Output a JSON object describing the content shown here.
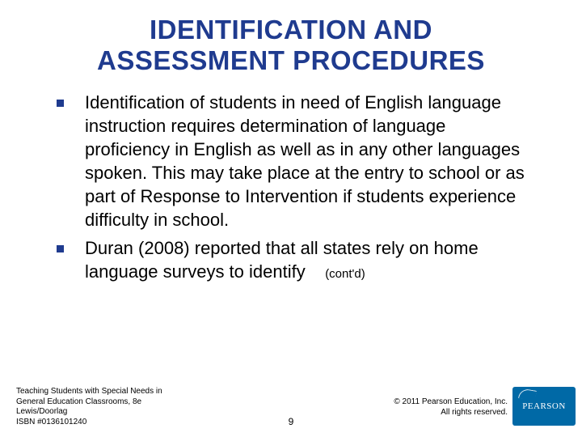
{
  "title": {
    "line1": "IDENTIFICATION AND",
    "line2": "ASSESSMENT PROCEDURES",
    "color": "#1f3b8f",
    "fontsize": 33
  },
  "bullets": [
    {
      "text": "Identification of students in need of English language instruction requires determination of language proficiency in English as well as in any other languages spoken.  This may take place at the entry to school or as part of Response to Intervention if students experience difficulty in school.",
      "fontsize": 22
    },
    {
      "text": "Duran (2008) reported that all states rely on home language surveys to identify",
      "contd": "(cont'd)",
      "fontsize": 22,
      "contd_fontsize": 15
    }
  ],
  "bullet_marker_color": "#1f3b8f",
  "footer": {
    "left_line1": "Teaching Students with Special Needs in",
    "left_line2": "General Education Classrooms, 8e",
    "left_line3": "Lewis/Doorlag",
    "left_line4": "ISBN #0136101240",
    "right_line1": "© 2011 Pearson Education, Inc.",
    "right_line2": "All rights reserved.",
    "fontsize": 10
  },
  "page_number": "9",
  "page_number_fontsize": 12,
  "logo": {
    "text": "PEARSON",
    "bg": "#0069a6",
    "fg": "#ffffff"
  },
  "background_color": "#ffffff"
}
